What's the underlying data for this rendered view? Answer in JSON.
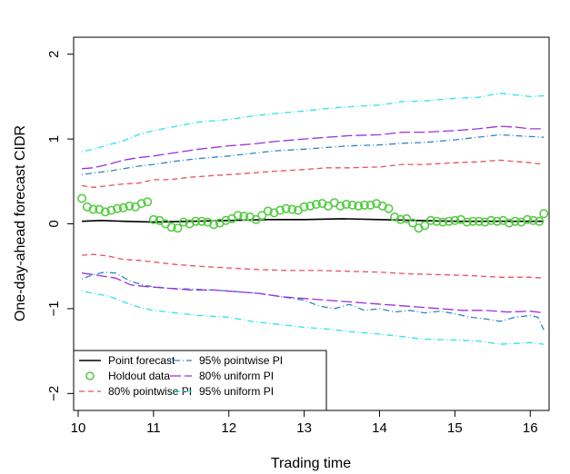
{
  "chart_data": {
    "type": "line",
    "xlabel": "Trading time",
    "ylabel": "One-day-ahead forecast CIDR",
    "xlim": [
      9.94,
      16.25
    ],
    "ylim": [
      -2.2,
      2.2
    ],
    "x_ticks": [
      10,
      11,
      12,
      13,
      14,
      15,
      16
    ],
    "y_ticks": [
      -2,
      -1,
      0,
      1,
      2
    ],
    "grid": false,
    "legend_position": "bottom-left",
    "series": [
      {
        "name": "Point forecast",
        "color": "#000000",
        "style": "solid",
        "points": [
          [
            10.05,
            0.03
          ],
          [
            10.3,
            0.04
          ],
          [
            10.6,
            0.03
          ],
          [
            11.0,
            0.02
          ],
          [
            11.5,
            0.03
          ],
          [
            12.0,
            0.04
          ],
          [
            12.5,
            0.05
          ],
          [
            13.0,
            0.05
          ],
          [
            13.5,
            0.06
          ],
          [
            14.0,
            0.05
          ],
          [
            14.5,
            0.04
          ],
          [
            15.0,
            0.03
          ],
          [
            15.5,
            0.03
          ],
          [
            16.18,
            0.03
          ]
        ]
      },
      {
        "name": "Holdout data",
        "color": "#55cc44",
        "style": "circles",
        "points": [
          [
            10.05,
            0.3
          ],
          [
            10.12,
            0.2
          ],
          [
            10.2,
            0.17
          ],
          [
            10.28,
            0.17
          ],
          [
            10.36,
            0.14
          ],
          [
            10.44,
            0.16
          ],
          [
            10.52,
            0.18
          ],
          [
            10.6,
            0.19
          ],
          [
            10.68,
            0.21
          ],
          [
            10.76,
            0.2
          ],
          [
            10.84,
            0.24
          ],
          [
            10.92,
            0.26
          ],
          [
            11.0,
            0.05
          ],
          [
            11.08,
            0.04
          ],
          [
            11.16,
            0.0
          ],
          [
            11.24,
            -0.04
          ],
          [
            11.32,
            -0.05
          ],
          [
            11.4,
            0.02
          ],
          [
            11.48,
            0.0
          ],
          [
            11.56,
            0.03
          ],
          [
            11.64,
            0.03
          ],
          [
            11.72,
            0.02
          ],
          [
            11.8,
            -0.01
          ],
          [
            11.88,
            0.01
          ],
          [
            11.96,
            0.04
          ],
          [
            12.04,
            0.06
          ],
          [
            12.12,
            0.1
          ],
          [
            12.2,
            0.09
          ],
          [
            12.28,
            0.08
          ],
          [
            12.36,
            0.05
          ],
          [
            12.44,
            0.1
          ],
          [
            12.52,
            0.15
          ],
          [
            12.6,
            0.13
          ],
          [
            12.68,
            0.16
          ],
          [
            12.76,
            0.18
          ],
          [
            12.84,
            0.17
          ],
          [
            12.92,
            0.16
          ],
          [
            13.0,
            0.2
          ],
          [
            13.08,
            0.21
          ],
          [
            13.16,
            0.23
          ],
          [
            13.24,
            0.24
          ],
          [
            13.32,
            0.21
          ],
          [
            13.4,
            0.25
          ],
          [
            13.48,
            0.21
          ],
          [
            13.56,
            0.23
          ],
          [
            13.64,
            0.22
          ],
          [
            13.72,
            0.21
          ],
          [
            13.8,
            0.22
          ],
          [
            13.88,
            0.22
          ],
          [
            13.96,
            0.24
          ],
          [
            14.04,
            0.21
          ],
          [
            14.12,
            0.18
          ],
          [
            14.2,
            0.08
          ],
          [
            14.28,
            0.05
          ],
          [
            14.36,
            0.06
          ],
          [
            14.44,
            0.01
          ],
          [
            14.52,
            -0.05
          ],
          [
            14.6,
            -0.02
          ],
          [
            14.68,
            0.04
          ],
          [
            14.76,
            0.03
          ],
          [
            14.84,
            0.02
          ],
          [
            14.92,
            0.03
          ],
          [
            15.0,
            0.04
          ],
          [
            15.08,
            0.05
          ],
          [
            15.16,
            0.02
          ],
          [
            15.24,
            0.03
          ],
          [
            15.32,
            0.03
          ],
          [
            15.4,
            0.02
          ],
          [
            15.48,
            0.04
          ],
          [
            15.56,
            0.03
          ],
          [
            15.64,
            0.04
          ],
          [
            15.72,
            0.01
          ],
          [
            15.8,
            0.03
          ],
          [
            15.88,
            0.02
          ],
          [
            15.96,
            0.05
          ],
          [
            16.04,
            0.04
          ],
          [
            16.12,
            0.03
          ],
          [
            16.18,
            0.12
          ]
        ]
      },
      {
        "name": "80% pointwise PI",
        "color": "#e8505e",
        "style": "dashed",
        "points": [
          [
            10.05,
            0.45
          ],
          [
            10.2,
            0.43
          ],
          [
            10.4,
            0.45
          ],
          [
            10.6,
            0.47
          ],
          [
            10.8,
            0.48
          ],
          [
            11.0,
            0.52
          ],
          [
            11.2,
            0.52
          ],
          [
            11.5,
            0.55
          ],
          [
            11.8,
            0.57
          ],
          [
            12.0,
            0.58
          ],
          [
            12.3,
            0.6
          ],
          [
            12.6,
            0.62
          ],
          [
            13.0,
            0.64
          ],
          [
            13.3,
            0.66
          ],
          [
            13.6,
            0.66
          ],
          [
            14.0,
            0.67
          ],
          [
            14.3,
            0.7
          ],
          [
            14.6,
            0.7
          ],
          [
            15.0,
            0.72
          ],
          [
            15.3,
            0.73
          ],
          [
            15.6,
            0.75
          ],
          [
            16.0,
            0.72
          ],
          [
            16.18,
            0.7
          ]
        ]
      },
      {
        "name": "80% pointwise PI (lower)",
        "color": "#e8505e",
        "style": "dashed",
        "points": [
          [
            10.05,
            -0.37
          ],
          [
            10.2,
            -0.36
          ],
          [
            10.4,
            -0.38
          ],
          [
            10.6,
            -0.42
          ],
          [
            10.8,
            -0.43
          ],
          [
            11.0,
            -0.45
          ],
          [
            11.3,
            -0.48
          ],
          [
            11.6,
            -0.5
          ],
          [
            12.0,
            -0.52
          ],
          [
            12.4,
            -0.54
          ],
          [
            12.8,
            -0.55
          ],
          [
            13.2,
            -0.55
          ],
          [
            13.6,
            -0.56
          ],
          [
            14.0,
            -0.57
          ],
          [
            14.4,
            -0.59
          ],
          [
            14.8,
            -0.6
          ],
          [
            15.2,
            -0.61
          ],
          [
            15.6,
            -0.63
          ],
          [
            16.0,
            -0.63
          ],
          [
            16.18,
            -0.64
          ]
        ]
      },
      {
        "name": "95% pointwise PI",
        "color": "#2e86c1",
        "style": "dotdash",
        "points": [
          [
            10.05,
            0.58
          ],
          [
            10.2,
            0.6
          ],
          [
            10.4,
            0.62
          ],
          [
            10.6,
            0.65
          ],
          [
            10.8,
            0.68
          ],
          [
            11.0,
            0.7
          ],
          [
            11.3,
            0.74
          ],
          [
            11.6,
            0.77
          ],
          [
            12.0,
            0.8
          ],
          [
            12.3,
            0.83
          ],
          [
            12.6,
            0.86
          ],
          [
            13.0,
            0.88
          ],
          [
            13.3,
            0.9
          ],
          [
            13.6,
            0.92
          ],
          [
            14.0,
            0.93
          ],
          [
            14.3,
            0.95
          ],
          [
            14.6,
            0.96
          ],
          [
            15.0,
            0.99
          ],
          [
            15.3,
            1.02
          ],
          [
            15.6,
            1.05
          ],
          [
            15.8,
            1.04
          ],
          [
            16.18,
            1.02
          ]
        ]
      },
      {
        "name": "95% pointwise PI (lower)",
        "color": "#2e86c1",
        "style": "dotdash",
        "points": [
          [
            10.05,
            -0.65
          ],
          [
            10.2,
            -0.6
          ],
          [
            10.35,
            -0.57
          ],
          [
            10.5,
            -0.58
          ],
          [
            10.7,
            -0.68
          ],
          [
            10.9,
            -0.73
          ],
          [
            11.2,
            -0.76
          ],
          [
            11.5,
            -0.77
          ],
          [
            11.8,
            -0.78
          ],
          [
            12.1,
            -0.8
          ],
          [
            12.4,
            -0.82
          ],
          [
            12.7,
            -0.86
          ],
          [
            13.0,
            -0.9
          ],
          [
            13.2,
            -0.97
          ],
          [
            13.4,
            -1.0
          ],
          [
            13.6,
            -0.95
          ],
          [
            13.8,
            -1.02
          ],
          [
            14.0,
            -1.0
          ],
          [
            14.2,
            -1.04
          ],
          [
            14.4,
            -1.02
          ],
          [
            14.6,
            -1.05
          ],
          [
            14.8,
            -1.03
          ],
          [
            15.0,
            -1.06
          ],
          [
            15.2,
            -1.1
          ],
          [
            15.4,
            -1.12
          ],
          [
            15.6,
            -1.15
          ],
          [
            15.8,
            -1.1
          ],
          [
            16.0,
            -1.08
          ],
          [
            16.1,
            -1.1
          ],
          [
            16.18,
            -1.25
          ]
        ]
      },
      {
        "name": "80% uniform PI",
        "color": "#9b30e0",
        "style": "longdash",
        "points": [
          [
            10.05,
            0.65
          ],
          [
            10.2,
            0.66
          ],
          [
            10.4,
            0.7
          ],
          [
            10.6,
            0.75
          ],
          [
            10.8,
            0.78
          ],
          [
            11.0,
            0.8
          ],
          [
            11.3,
            0.84
          ],
          [
            11.6,
            0.88
          ],
          [
            12.0,
            0.92
          ],
          [
            12.3,
            0.94
          ],
          [
            12.6,
            0.97
          ],
          [
            13.0,
            1.0
          ],
          [
            13.3,
            1.02
          ],
          [
            13.6,
            1.04
          ],
          [
            14.0,
            1.05
          ],
          [
            14.3,
            1.08
          ],
          [
            14.6,
            1.08
          ],
          [
            15.0,
            1.1
          ],
          [
            15.3,
            1.12
          ],
          [
            15.6,
            1.15
          ],
          [
            15.8,
            1.14
          ],
          [
            16.0,
            1.12
          ],
          [
            16.18,
            1.12
          ]
        ]
      },
      {
        "name": "80% uniform PI (lower)",
        "color": "#9b30e0",
        "style": "longdash",
        "points": [
          [
            10.05,
            -0.58
          ],
          [
            10.2,
            -0.6
          ],
          [
            10.35,
            -0.62
          ],
          [
            10.5,
            -0.64
          ],
          [
            10.7,
            -0.72
          ],
          [
            10.9,
            -0.74
          ],
          [
            11.2,
            -0.76
          ],
          [
            11.5,
            -0.78
          ],
          [
            11.8,
            -0.78
          ],
          [
            12.1,
            -0.8
          ],
          [
            12.4,
            -0.82
          ],
          [
            12.7,
            -0.86
          ],
          [
            13.0,
            -0.88
          ],
          [
            13.3,
            -0.9
          ],
          [
            13.6,
            -0.92
          ],
          [
            13.9,
            -0.94
          ],
          [
            14.2,
            -0.96
          ],
          [
            14.5,
            -0.98
          ],
          [
            14.8,
            -1.0
          ],
          [
            15.1,
            -1.02
          ],
          [
            15.4,
            -1.02
          ],
          [
            15.7,
            -1.04
          ],
          [
            16.0,
            -1.03
          ],
          [
            16.18,
            -1.05
          ]
        ]
      },
      {
        "name": "95% uniform PI",
        "color": "#2ee5e5",
        "style": "dotdash",
        "points": [
          [
            10.05,
            0.85
          ],
          [
            10.2,
            0.88
          ],
          [
            10.4,
            0.93
          ],
          [
            10.6,
            0.98
          ],
          [
            10.8,
            1.05
          ],
          [
            11.0,
            1.1
          ],
          [
            11.3,
            1.15
          ],
          [
            11.6,
            1.2
          ],
          [
            12.0,
            1.23
          ],
          [
            12.3,
            1.27
          ],
          [
            12.6,
            1.3
          ],
          [
            13.0,
            1.33
          ],
          [
            13.3,
            1.36
          ],
          [
            13.6,
            1.38
          ],
          [
            14.0,
            1.4
          ],
          [
            14.3,
            1.44
          ],
          [
            14.6,
            1.45
          ],
          [
            15.0,
            1.48
          ],
          [
            15.3,
            1.49
          ],
          [
            15.6,
            1.54
          ],
          [
            15.8,
            1.52
          ],
          [
            16.0,
            1.5
          ],
          [
            16.18,
            1.51
          ]
        ]
      },
      {
        "name": "95% uniform PI (lower)",
        "color": "#2ee5e5",
        "style": "dotdash",
        "points": [
          [
            10.05,
            -0.79
          ],
          [
            10.2,
            -0.82
          ],
          [
            10.4,
            -0.85
          ],
          [
            10.6,
            -0.92
          ],
          [
            10.8,
            -0.98
          ],
          [
            11.0,
            -1.02
          ],
          [
            11.3,
            -1.05
          ],
          [
            11.6,
            -1.08
          ],
          [
            12.0,
            -1.1
          ],
          [
            12.3,
            -1.15
          ],
          [
            12.6,
            -1.18
          ],
          [
            13.0,
            -1.22
          ],
          [
            13.3,
            -1.24
          ],
          [
            13.6,
            -1.27
          ],
          [
            14.0,
            -1.3
          ],
          [
            14.3,
            -1.33
          ],
          [
            14.6,
            -1.36
          ],
          [
            15.0,
            -1.37
          ],
          [
            15.3,
            -1.38
          ],
          [
            15.6,
            -1.42
          ],
          [
            15.8,
            -1.41
          ],
          [
            16.0,
            -1.4
          ],
          [
            16.18,
            -1.42
          ]
        ]
      }
    ],
    "legend": [
      {
        "label": "Point forecast",
        "series": 0
      },
      {
        "label": "Holdout data",
        "series": 1
      },
      {
        "label": "80% pointwise PI",
        "series": 2
      },
      {
        "label": "95% pointwise PI",
        "series": 4
      },
      {
        "label": "80% uniform PI",
        "series": 6
      },
      {
        "label": "95% uniform PI",
        "series": 8
      }
    ]
  }
}
